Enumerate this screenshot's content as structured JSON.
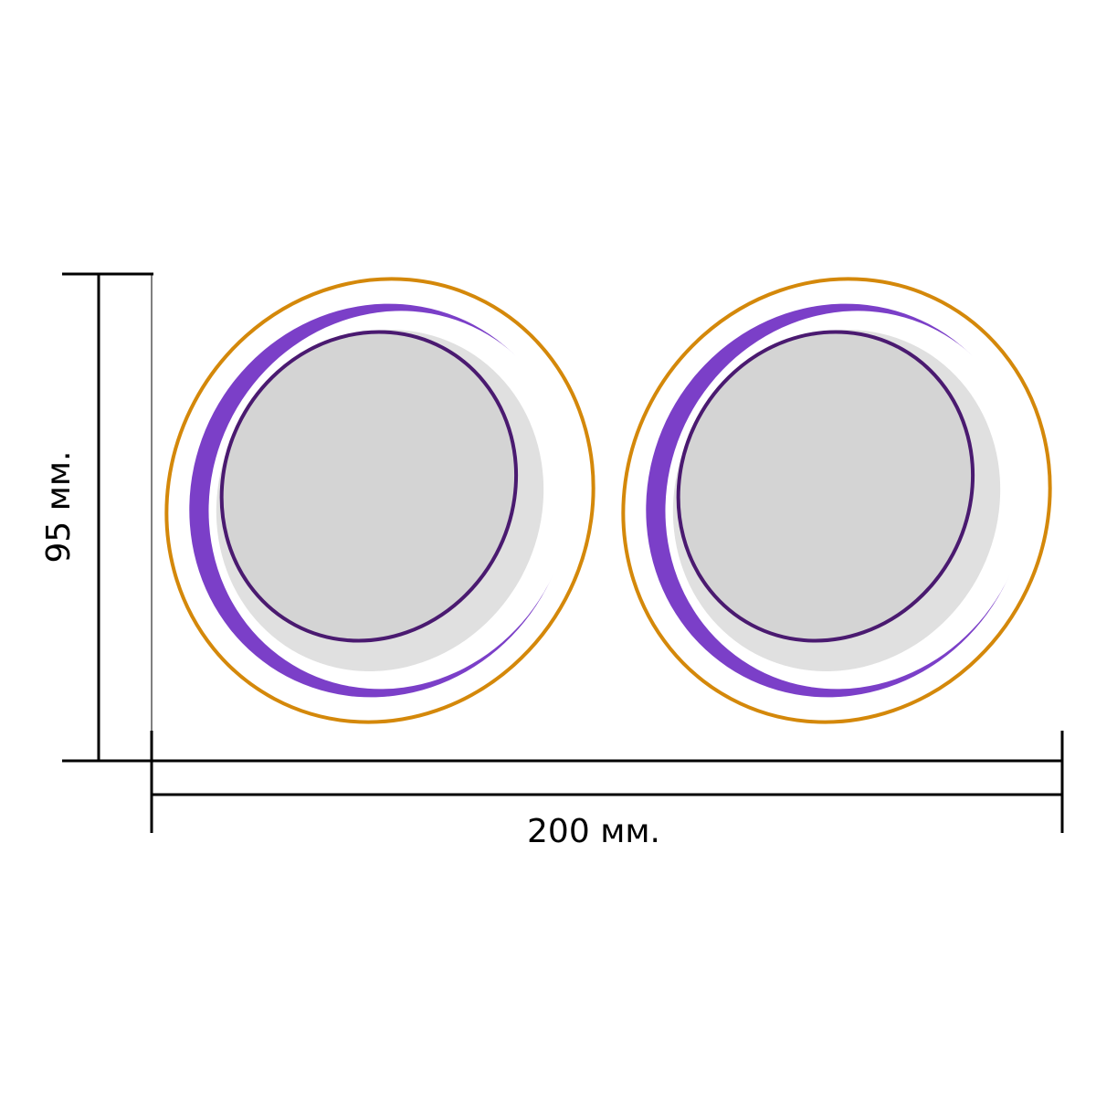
{
  "dimensions": {
    "height": "95 мм.",
    "width": "200 мм."
  }
}
